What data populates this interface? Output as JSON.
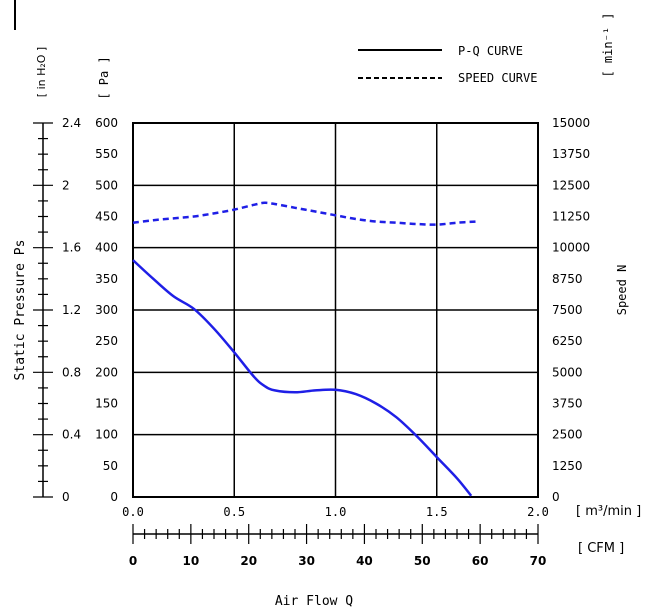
{
  "chart_data": {
    "type": "line",
    "legend": {
      "placement": "top-right",
      "entries": [
        "P-Q CURVE",
        "SPEED CURVE"
      ]
    },
    "x_axes": {
      "primary": {
        "unit_label": "[ m³/min ]",
        "range": [
          0,
          2.0
        ],
        "ticks": [
          "0.0",
          "0.5",
          "1.0",
          "1.5",
          "2.0"
        ]
      },
      "secondary": {
        "unit_label": "[ CFM ]",
        "range": [
          0,
          70
        ],
        "ticks": [
          "0",
          "10",
          "20",
          "30",
          "40",
          "50",
          "60",
          "70"
        ]
      },
      "title": "Air Flow Q"
    },
    "y_axes": {
      "pa": {
        "unit_label": "[ Pa ]",
        "range": [
          0,
          600
        ],
        "ticks": [
          "0",
          "50",
          "100",
          "150",
          "200",
          "250",
          "300",
          "350",
          "400",
          "450",
          "500",
          "550",
          "600"
        ]
      },
      "inh2o": {
        "unit_label": "[ in H₂O ]",
        "range": [
          0,
          2.4
        ],
        "ticks": [
          "0",
          "0.4",
          "0.8",
          "1.2",
          "1.6",
          "2",
          "2.4"
        ]
      },
      "speed": {
        "unit_label": "[ min⁻¹ ]",
        "range": [
          0,
          15000
        ],
        "ticks": [
          "0",
          "1250",
          "2500",
          "3750",
          "5000",
          "6250",
          "7500",
          "8750",
          "10000",
          "11250",
          "12500",
          "13750",
          "15000"
        ]
      },
      "left_title": "Static Pressure Ps",
      "right_title": "Speed N"
    },
    "grid": true,
    "series": [
      {
        "name": "P-Q CURVE",
        "axis": "pa",
        "style": "solid",
        "color": "#1f1fe6",
        "points": [
          [
            0.0,
            380
          ],
          [
            0.1,
            350
          ],
          [
            0.2,
            322
          ],
          [
            0.3,
            302
          ],
          [
            0.4,
            270
          ],
          [
            0.5,
            232
          ],
          [
            0.6,
            192
          ],
          [
            0.65,
            178
          ],
          [
            0.7,
            171
          ],
          [
            0.8,
            168
          ],
          [
            0.9,
            171
          ],
          [
            1.0,
            172
          ],
          [
            1.1,
            165
          ],
          [
            1.2,
            150
          ],
          [
            1.3,
            128
          ],
          [
            1.4,
            98
          ],
          [
            1.5,
            64
          ],
          [
            1.6,
            30
          ],
          [
            1.67,
            2
          ]
        ]
      },
      {
        "name": "SPEED CURVE",
        "axis": "speed",
        "style": "dashed",
        "color": "#1f1fe6",
        "points": [
          [
            0.0,
            11000
          ],
          [
            0.1,
            11100
          ],
          [
            0.2,
            11175
          ],
          [
            0.3,
            11250
          ],
          [
            0.4,
            11375
          ],
          [
            0.5,
            11525
          ],
          [
            0.6,
            11725
          ],
          [
            0.65,
            11800
          ],
          [
            0.7,
            11750
          ],
          [
            0.8,
            11600
          ],
          [
            0.9,
            11450
          ],
          [
            1.0,
            11300
          ],
          [
            1.1,
            11150
          ],
          [
            1.2,
            11050
          ],
          [
            1.3,
            11000
          ],
          [
            1.4,
            10950
          ],
          [
            1.5,
            10925
          ],
          [
            1.6,
            11000
          ],
          [
            1.7,
            11050
          ]
        ]
      }
    ]
  }
}
